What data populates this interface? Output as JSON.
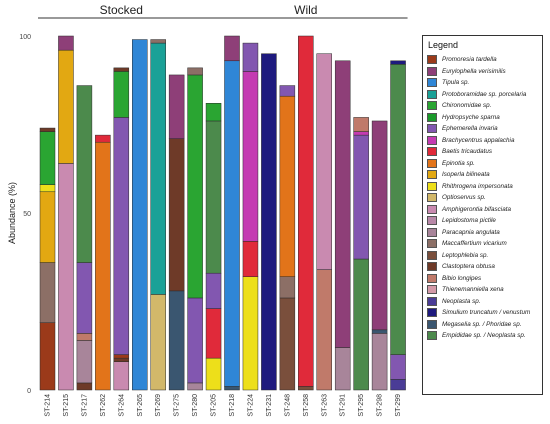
{
  "chart_data": {
    "type": "bar",
    "stacked": true,
    "ylabel": "Abundance (%)",
    "ylim": [
      0,
      100
    ],
    "yticks": [
      0,
      50,
      100
    ],
    "grid": false,
    "groups": [
      {
        "label": "Stocked",
        "sites": [
          "ST-214",
          "ST-215",
          "ST-217",
          "ST-262",
          "ST-264",
          "ST-265",
          "ST-269",
          "ST-275",
          "ST-280"
        ]
      },
      {
        "label": "Wild",
        "sites": [
          "ST-205",
          "ST-218",
          "ST-224",
          "ST-231",
          "ST-248",
          "ST-258",
          "ST-263",
          "ST-291",
          "ST-295",
          "ST-298",
          "ST-299"
        ]
      }
    ],
    "legend_title": "Legend",
    "legend_position": "right",
    "taxa": [
      {
        "name": "Promoresia tardella",
        "color": "#9b3a1a"
      },
      {
        "name": "Eurylophella verisimilis",
        "color": "#8e3f78"
      },
      {
        "name": "Tipula sp.",
        "color": "#2f86d6"
      },
      {
        "name": "Protoboramidae sp. porcelaria",
        "color": "#1aa197"
      },
      {
        "name": "Chironomidae sp.",
        "color": "#2aa532"
      },
      {
        "name": "Hydropsyche sparna",
        "color": "#1a9a2a"
      },
      {
        "name": "Ephemerella invaria",
        "color": "#8257b0"
      },
      {
        "name": "Brachycentrus appalachia",
        "color": "#c43bb2"
      },
      {
        "name": "Baetis tricaudatus",
        "color": "#e02a3a"
      },
      {
        "name": "Epinotia sp.",
        "color": "#e2741a"
      },
      {
        "name": "Isoperla bilineata",
        "color": "#e2a812"
      },
      {
        "name": "Rhithrogena impersonata",
        "color": "#eddf1a"
      },
      {
        "name": "Optioservus sp.",
        "color": "#d2b86a"
      },
      {
        "name": "Amphigerontia bifasciata",
        "color": "#c98ab0"
      },
      {
        "name": "Lepidostoma pictile",
        "color": "#b888a8"
      },
      {
        "name": "Paracapnia angulata",
        "color": "#a8859a"
      },
      {
        "name": "Maccaffertium vicarium",
        "color": "#8c6f66"
      },
      {
        "name": "Leptophlebia sp.",
        "color": "#7a4f3c"
      },
      {
        "name": "Clastoptera obtusa",
        "color": "#6e3a28"
      },
      {
        "name": "Bibio longipes",
        "color": "#c07a6a"
      },
      {
        "name": "Thienemanniella xena",
        "color": "#d49aa8"
      },
      {
        "name": "Neoplasta sp.",
        "color": "#4a3c96"
      },
      {
        "name": "Simulium truncatum / venustum",
        "color": "#1e1a7e"
      },
      {
        "name": "Megaselia sp. / Phoridae sp.",
        "color": "#3a5670"
      },
      {
        "name": "Empididae sp. / Neoplasta sp.",
        "color": "#4c8a4c"
      }
    ],
    "bars": [
      {
        "site": "ST-214",
        "segments": [
          [
            "Promoresia tardella",
            19
          ],
          [
            "Maccaffertium vicarium",
            17
          ],
          [
            "Isoperla bilineata",
            20
          ],
          [
            "Rhithrogena impersonata",
            2
          ],
          [
            "Chironomidae sp.",
            15
          ],
          [
            "Clastoptera obtusa",
            1
          ]
        ]
      },
      {
        "site": "ST-215",
        "segments": [
          [
            "Amphigerontia bifasciata",
            64
          ],
          [
            "Isoperla bilineata",
            32
          ],
          [
            "Eurylophella verisimilis",
            4
          ]
        ]
      },
      {
        "site": "ST-217",
        "segments": [
          [
            "Clastoptera obtusa",
            2
          ],
          [
            "Paracapnia angulata",
            12
          ],
          [
            "Bibio longipes",
            2
          ],
          [
            "Ephemerella invaria",
            20
          ],
          [
            "Empididae sp. / Neoplasta sp.",
            50
          ]
        ]
      },
      {
        "site": "ST-262",
        "segments": [
          [
            "Epinotia sp.",
            70
          ],
          [
            "Baetis tricaudatus",
            2
          ]
        ]
      },
      {
        "site": "ST-264",
        "segments": [
          [
            "Amphigerontia bifasciata",
            8
          ],
          [
            "Clastoptera obtusa",
            1
          ],
          [
            "Promoresia tardella",
            1
          ],
          [
            "Ephemerella invaria",
            67
          ],
          [
            "Chironomidae sp.",
            13
          ],
          [
            "Clastoptera obtusa",
            1
          ]
        ]
      },
      {
        "site": "ST-265",
        "segments": [
          [
            "Tipula sp.",
            99
          ]
        ]
      },
      {
        "site": "ST-269",
        "segments": [
          [
            "Optioservus sp.",
            27
          ],
          [
            "Protoboramidae sp. porcelaria",
            71
          ],
          [
            "Maccaffertium vicarium",
            1
          ]
        ]
      },
      {
        "site": "ST-275",
        "segments": [
          [
            "Megaselia sp. / Phoridae sp.",
            28
          ],
          [
            "Clastoptera obtusa",
            43
          ],
          [
            "Eurylophella verisimilis",
            18
          ]
        ]
      },
      {
        "site": "ST-280",
        "segments": [
          [
            "Paracapnia angulata",
            2
          ],
          [
            "Ephemerella invaria",
            24
          ],
          [
            "Chironomidae sp.",
            63
          ],
          [
            "Maccaffertium vicarium",
            2
          ]
        ]
      },
      {
        "site": "ST-205",
        "segments": [
          [
            "Rhithrogena impersonata",
            9
          ],
          [
            "Baetis tricaudatus",
            14
          ],
          [
            "Ephemerella invaria",
            10
          ],
          [
            "Empididae sp. / Neoplasta sp.",
            43
          ],
          [
            "Chironomidae sp.",
            5
          ]
        ]
      },
      {
        "site": "ST-218",
        "segments": [
          [
            "Megaselia sp. / Phoridae sp.",
            1
          ],
          [
            "Tipula sp.",
            92
          ],
          [
            "Eurylophella verisimilis",
            7
          ]
        ]
      },
      {
        "site": "ST-224",
        "segments": [
          [
            "Rhithrogena impersonata",
            32
          ],
          [
            "Baetis tricaudatus",
            10
          ],
          [
            "Brachycentrus appalachia",
            48
          ],
          [
            "Ephemerella invaria",
            8
          ]
        ]
      },
      {
        "site": "ST-231",
        "segments": [
          [
            "Simulium truncatum / venustum",
            95
          ]
        ]
      },
      {
        "site": "ST-248",
        "segments": [
          [
            "Leptophlebia sp.",
            26
          ],
          [
            "Maccaffertium vicarium",
            6
          ],
          [
            "Epinotia sp.",
            51
          ],
          [
            "Ephemerella invaria",
            3
          ]
        ]
      },
      {
        "site": "ST-258",
        "segments": [
          [
            "Leptophlebia sp.",
            1
          ],
          [
            "Baetis tricaudatus",
            99
          ]
        ]
      },
      {
        "site": "ST-263",
        "segments": [
          [
            "Bibio longipes",
            34
          ],
          [
            "Amphigerontia bifasciata",
            61
          ]
        ]
      },
      {
        "site": "ST-291",
        "segments": [
          [
            "Paracapnia angulata",
            12
          ],
          [
            "Eurylophella verisimilis",
            81
          ]
        ]
      },
      {
        "site": "ST-295",
        "segments": [
          [
            "Empididae sp. / Neoplasta sp.",
            37
          ],
          [
            "Ephemerella invaria",
            35
          ],
          [
            "Brachycentrus appalachia",
            1
          ],
          [
            "Bibio longipes",
            4
          ]
        ]
      },
      {
        "site": "ST-298",
        "segments": [
          [
            "Paracapnia angulata",
            16
          ],
          [
            "Megaselia sp. / Phoridae sp.",
            1
          ],
          [
            "Eurylophella verisimilis",
            59
          ]
        ]
      },
      {
        "site": "ST-299",
        "segments": [
          [
            "Neoplasta sp.",
            3
          ],
          [
            "Ephemerella invaria",
            7
          ],
          [
            "Empididae sp. / Neoplasta sp.",
            82
          ],
          [
            "Simulium truncatum / venustum",
            1
          ]
        ]
      }
    ]
  }
}
